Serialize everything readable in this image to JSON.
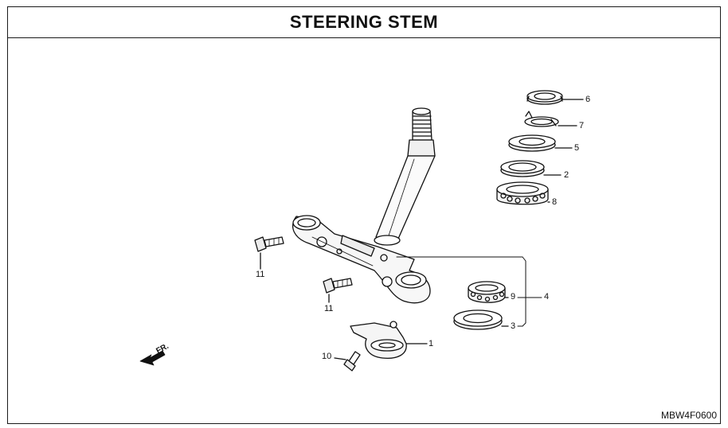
{
  "title": "STEERING STEM",
  "reference_code": "MBW4F0600",
  "direction_label": "FR.",
  "callouts": {
    "c1": "1",
    "c2": "2",
    "c3": "3",
    "c4": "4",
    "c5": "5",
    "c6": "6",
    "c7": "7",
    "c8": "8",
    "c9": "9",
    "c10": "10",
    "c11a": "11",
    "c11b": "11"
  }
}
